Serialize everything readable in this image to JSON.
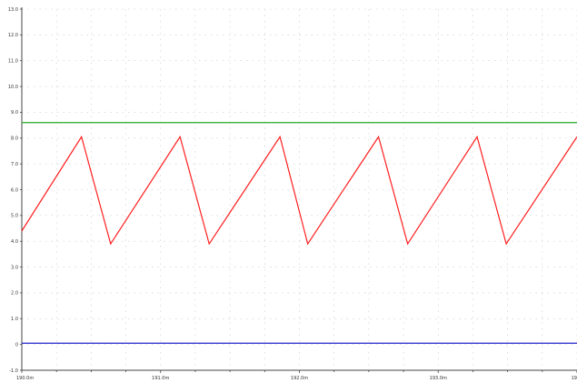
{
  "chart_data": {
    "type": "line",
    "title": "",
    "xlabel": "",
    "ylabel": "",
    "xlim": [
      190.0,
      194.0
    ],
    "ylim": [
      -1.0,
      13.0
    ],
    "grid": true,
    "y_tick_labels": [
      "-1.0",
      "0",
      "1.0",
      "2.0",
      "3.0",
      "4.0",
      "5.0",
      "6.0",
      "7.0",
      "8.0",
      "9.0",
      "10.0",
      "11.0",
      "12.0",
      "13.0"
    ],
    "x_tick_labels": [
      "190.0m",
      "191.0m",
      "192.0m",
      "193.0m",
      "19"
    ],
    "series": [
      {
        "color": "#22aa22",
        "x": [
          190.0,
          194.0
        ],
        "y": [
          8.6,
          8.6
        ]
      },
      {
        "color": "#ff2020",
        "x": [
          190.0,
          190.43,
          190.64,
          191.14,
          191.35,
          191.86,
          192.06,
          192.57,
          192.78,
          193.28,
          193.49,
          194.0
        ],
        "y": [
          4.4,
          8.05,
          3.9,
          8.05,
          3.9,
          8.05,
          3.9,
          8.05,
          3.9,
          8.05,
          3.9,
          8.05
        ]
      },
      {
        "color": "#2222cc",
        "x": [
          190.0,
          194.0
        ],
        "y": [
          0.05,
          0.05
        ]
      }
    ]
  }
}
